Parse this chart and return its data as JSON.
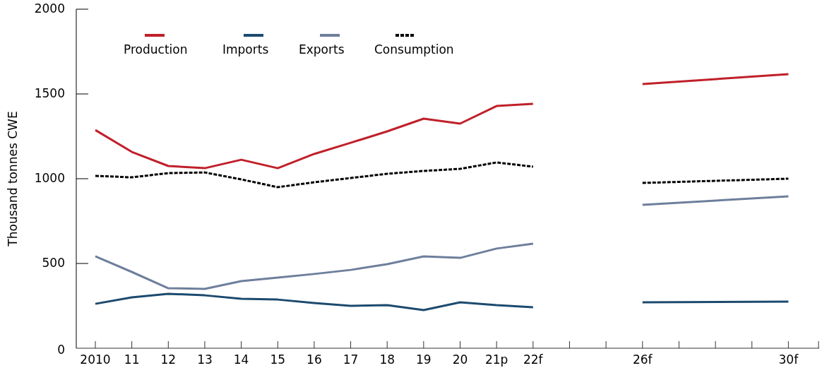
{
  "chart_data": {
    "type": "line",
    "ylabel": "Thousand tonnes CWE",
    "categories": [
      "2010",
      "11",
      "12",
      "13",
      "14",
      "15",
      "16",
      "17",
      "18",
      "19",
      "20",
      "21p",
      "22f",
      null,
      null,
      "26f",
      null,
      null,
      null,
      "30f"
    ],
    "series": [
      {
        "name": "Production",
        "color": "#c0202a",
        "line_style": "solid",
        "values": [
          1287,
          1158,
          1075,
          1062,
          1112,
          1062,
          1146,
          1212,
          1279,
          1354,
          1325,
          1429,
          1442,
          null,
          null,
          null,
          null,
          null,
          null,
          null
        ]
      },
      {
        "name": "Imports",
        "color": "#1c4a6e",
        "line_style": "solid",
        "values": [
          262,
          300,
          321,
          312,
          292,
          287,
          267,
          250,
          254,
          225,
          271,
          254,
          242,
          null,
          null,
          null,
          null,
          null,
          null,
          null
        ]
      },
      {
        "name": "Exports",
        "color": "#6e7f9c",
        "line_style": "solid",
        "values": [
          542,
          450,
          354,
          350,
          396,
          417,
          438,
          462,
          496,
          542,
          533,
          588,
          617,
          null,
          null,
          null,
          null,
          null,
          null,
          null
        ]
      },
      {
        "name": "Consumption",
        "color": "#000000",
        "line_style": "dashed",
        "values": [
          1017,
          1008,
          1033,
          1037,
          996,
          950,
          979,
          1004,
          1029,
          1046,
          1058,
          1096,
          1071,
          null,
          null,
          null,
          null,
          null,
          null,
          null
        ]
      },
      {
        "color": "#c0202a",
        "line_style": "solid",
        "values": [
          null,
          null,
          null,
          null,
          null,
          null,
          null,
          null,
          null,
          null,
          null,
          null,
          null,
          null,
          null,
          1558,
          null,
          null,
          null,
          1617
        ]
      },
      {
        "color": "#1c4a6e",
        "line_style": "solid",
        "values": [
          null,
          null,
          null,
          null,
          null,
          null,
          null,
          null,
          null,
          null,
          null,
          null,
          null,
          null,
          null,
          271,
          null,
          null,
          null,
          275
        ]
      },
      {
        "color": "#6e7f9c",
        "line_style": "solid",
        "values": [
          null,
          null,
          null,
          null,
          null,
          null,
          null,
          null,
          null,
          null,
          null,
          null,
          null,
          null,
          null,
          846,
          null,
          null,
          null,
          896
        ]
      },
      {
        "color": "#000000",
        "line_style": "dashed",
        "values": [
          null,
          null,
          null,
          null,
          null,
          null,
          null,
          null,
          null,
          null,
          null,
          null,
          null,
          null,
          null,
          975,
          null,
          null,
          null,
          1000
        ]
      }
    ],
    "ylim": [
      0,
      2000
    ],
    "yticks": [
      0,
      500,
      1000,
      1500,
      2000
    ],
    "grid": false,
    "legend": "top",
    "marker": "none"
  }
}
